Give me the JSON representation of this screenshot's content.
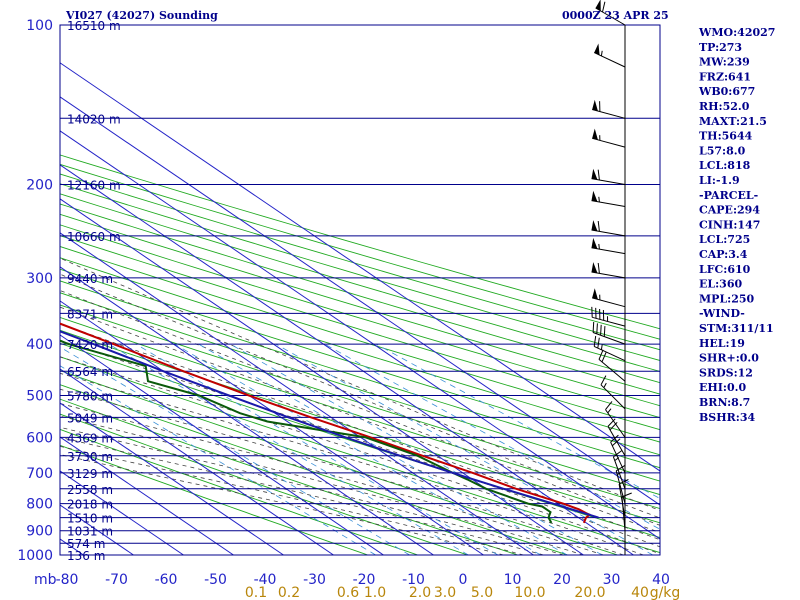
{
  "header": {
    "station": "VI027 (42027) Sounding",
    "time": "0000Z 23 APR 25"
  },
  "chart_data": {
    "type": "line",
    "title": "VI027 (42027) Sounding",
    "xlabel": "",
    "ylabel": "mb",
    "xlim": [
      -80,
      40
    ],
    "ylim": [
      1000,
      100
    ],
    "x_ticks": [
      "-80",
      "-70",
      "-60",
      "-50",
      "-40",
      "-30",
      "-20",
      "-10",
      "0",
      "10",
      "20",
      "30",
      "40"
    ],
    "pressure_ticks": [
      "100",
      "200",
      "300",
      "400",
      "500",
      "600",
      "700",
      "800",
      "900",
      "1000"
    ],
    "height_labels": [
      {
        "p": 100,
        "label": "16510 m"
      },
      {
        "p": 150,
        "label": "14020 m"
      },
      {
        "p": 200,
        "label": "12160 m"
      },
      {
        "p": 250,
        "label": "10660 m"
      },
      {
        "p": 300,
        "label": "9440 m"
      },
      {
        "p": 350,
        "label": "8371 m"
      },
      {
        "p": 400,
        "label": "7420 m"
      },
      {
        "p": 450,
        "label": "6564 m"
      },
      {
        "p": 500,
        "label": "5780 m"
      },
      {
        "p": 550,
        "label": "5049 m"
      },
      {
        "p": 600,
        "label": "4369 m"
      },
      {
        "p": 650,
        "label": "3730 m"
      },
      {
        "p": 700,
        "label": "3129 m"
      },
      {
        "p": 750,
        "label": "2558 m"
      },
      {
        "p": 800,
        "label": "2018 m"
      },
      {
        "p": 850,
        "label": "1510 m"
      },
      {
        "p": 900,
        "label": "1031 m"
      },
      {
        "p": 950,
        "label": "574 m"
      },
      {
        "p": 1000,
        "label": "136 m"
      }
    ],
    "mixing_ratio_labels": [
      "0.1",
      "0.2",
      "0.6",
      "1.0",
      "2.0",
      "3.0",
      "5.0",
      "10.0",
      "20.0",
      "40",
      "g/kg"
    ],
    "series": [
      {
        "color": "#c00000",
        "points": [
          {
            "p": 870,
            "t": 9.5
          },
          {
            "p": 850,
            "t": 11.5
          },
          {
            "p": 840,
            "t": 13
          },
          {
            "p": 820,
            "t": 12.5
          },
          {
            "p": 800,
            "t": 11
          },
          {
            "p": 750,
            "t": 6
          },
          {
            "p": 700,
            "t": 2
          },
          {
            "p": 650,
            "t": -3
          },
          {
            "p": 600,
            "t": -8
          },
          {
            "p": 550,
            "t": -14
          },
          {
            "p": 500,
            "t": -20
          },
          {
            "p": 450,
            "t": -26
          },
          {
            "p": 400,
            "t": -32
          },
          {
            "p": 350,
            "t": -39
          },
          {
            "p": 300,
            "t": -46
          },
          {
            "p": 270,
            "t": -51
          },
          {
            "p": 250,
            "t": -53
          },
          {
            "p": 230,
            "t": -53
          },
          {
            "p": 200,
            "t": -55
          },
          {
            "p": 180,
            "t": -57
          },
          {
            "p": 160,
            "t": -59
          },
          {
            "p": 150,
            "t": -62
          },
          {
            "p": 130,
            "t": -68
          },
          {
            "p": 120,
            "t": -71
          },
          {
            "p": 100,
            "t": -76
          }
        ]
      },
      {
        "color": "#0a5a0a",
        "points": [
          {
            "p": 870,
            "t": 3
          },
          {
            "p": 850,
            "t": 4
          },
          {
            "p": 830,
            "t": 6
          },
          {
            "p": 810,
            "t": 6
          },
          {
            "p": 800,
            "t": 4
          },
          {
            "p": 750,
            "t": 0
          },
          {
            "p": 720,
            "t": -1
          },
          {
            "p": 700,
            "t": -2
          },
          {
            "p": 650,
            "t": -4
          },
          {
            "p": 600,
            "t": -9
          },
          {
            "p": 560,
            "t": -24
          },
          {
            "p": 540,
            "t": -27
          },
          {
            "p": 500,
            "t": -30
          },
          {
            "p": 470,
            "t": -36
          },
          {
            "p": 440,
            "t": -32
          },
          {
            "p": 400,
            "t": -41
          },
          {
            "p": 350,
            "t": -47
          },
          {
            "p": 300,
            "t": -56
          },
          {
            "p": 250,
            "t": -72
          },
          {
            "p": 230,
            "t": -80
          }
        ]
      },
      {
        "color": "#1a1aaa",
        "points": [
          {
            "p": 850,
            "t": 14
          },
          {
            "p": 800,
            "t": 9
          },
          {
            "p": 750,
            "t": 3.5
          },
          {
            "p": 700,
            "t": -2
          },
          {
            "p": 650,
            "t": -7.5
          },
          {
            "p": 600,
            "t": -13
          },
          {
            "p": 550,
            "t": -18.5
          },
          {
            "p": 500,
            "t": -24
          },
          {
            "p": 450,
            "t": -30
          },
          {
            "p": 400,
            "t": -36
          },
          {
            "p": 350,
            "t": -43
          },
          {
            "p": 300,
            "t": -51
          },
          {
            "p": 250,
            "t": -60
          },
          {
            "p": 200,
            "t": -70
          },
          {
            "p": 170,
            "t": -77
          },
          {
            "p": 150,
            "t": -83
          }
        ]
      }
    ],
    "wind_barbs": [
      {
        "p": 100,
        "dir": 300,
        "spd": 60
      },
      {
        "p": 120,
        "dir": 295,
        "spd": 55
      },
      {
        "p": 150,
        "dir": 285,
        "spd": 60
      },
      {
        "p": 170,
        "dir": 285,
        "spd": 55
      },
      {
        "p": 200,
        "dir": 280,
        "spd": 60
      },
      {
        "p": 220,
        "dir": 280,
        "spd": 55
      },
      {
        "p": 250,
        "dir": 280,
        "spd": 60
      },
      {
        "p": 270,
        "dir": 280,
        "spd": 55
      },
      {
        "p": 300,
        "dir": 280,
        "spd": 60
      },
      {
        "p": 340,
        "dir": 285,
        "spd": 55
      },
      {
        "p": 370,
        "dir": 285,
        "spd": 45
      },
      {
        "p": 400,
        "dir": 290,
        "spd": 40
      },
      {
        "p": 430,
        "dir": 295,
        "spd": 25
      },
      {
        "p": 470,
        "dir": 310,
        "spd": 20
      },
      {
        "p": 530,
        "dir": 315,
        "spd": 15
      },
      {
        "p": 600,
        "dir": 325,
        "spd": 15
      },
      {
        "p": 650,
        "dir": 330,
        "spd": 20
      },
      {
        "p": 700,
        "dir": 335,
        "spd": 20
      },
      {
        "p": 750,
        "dir": 340,
        "spd": 15
      },
      {
        "p": 800,
        "dir": 345,
        "spd": 15
      },
      {
        "p": 850,
        "dir": 350,
        "spd": 10
      },
      {
        "p": 900,
        "dir": 355,
        "spd": 10
      }
    ]
  },
  "indices": [
    "WMO:42027",
    "TP:273",
    "MW:239",
    "FRZ:641",
    "WB0:677",
    "RH:52.0",
    "MAXT:21.5",
    "TH:5644",
    "L57:8.0",
    "LCL:818",
    "LI:-1.9",
    "-PARCEL-",
    "CAPE:294",
    "CINH:147",
    "LCL:725",
    "CAP:3.4",
    "LFC:610",
    "EL:360",
    "MPL:250",
    "-WIND-",
    "STM:311/11",
    "HEL:19",
    "SHR+:0.0",
    "SRDS:12",
    "EHI:0.0",
    "BRN:8.7",
    "BSHR:34"
  ],
  "colors": {
    "temperature": "#c00000",
    "dewpoint": "#0a5a0a",
    "parcel": "#1a1aaa",
    "isobar": "#00008b",
    "isotherm": "#2424c8",
    "dry_adiabat": "#22aa22",
    "moist_adiabat": "#444444",
    "mixing_ratio": "#3a8fd6"
  }
}
